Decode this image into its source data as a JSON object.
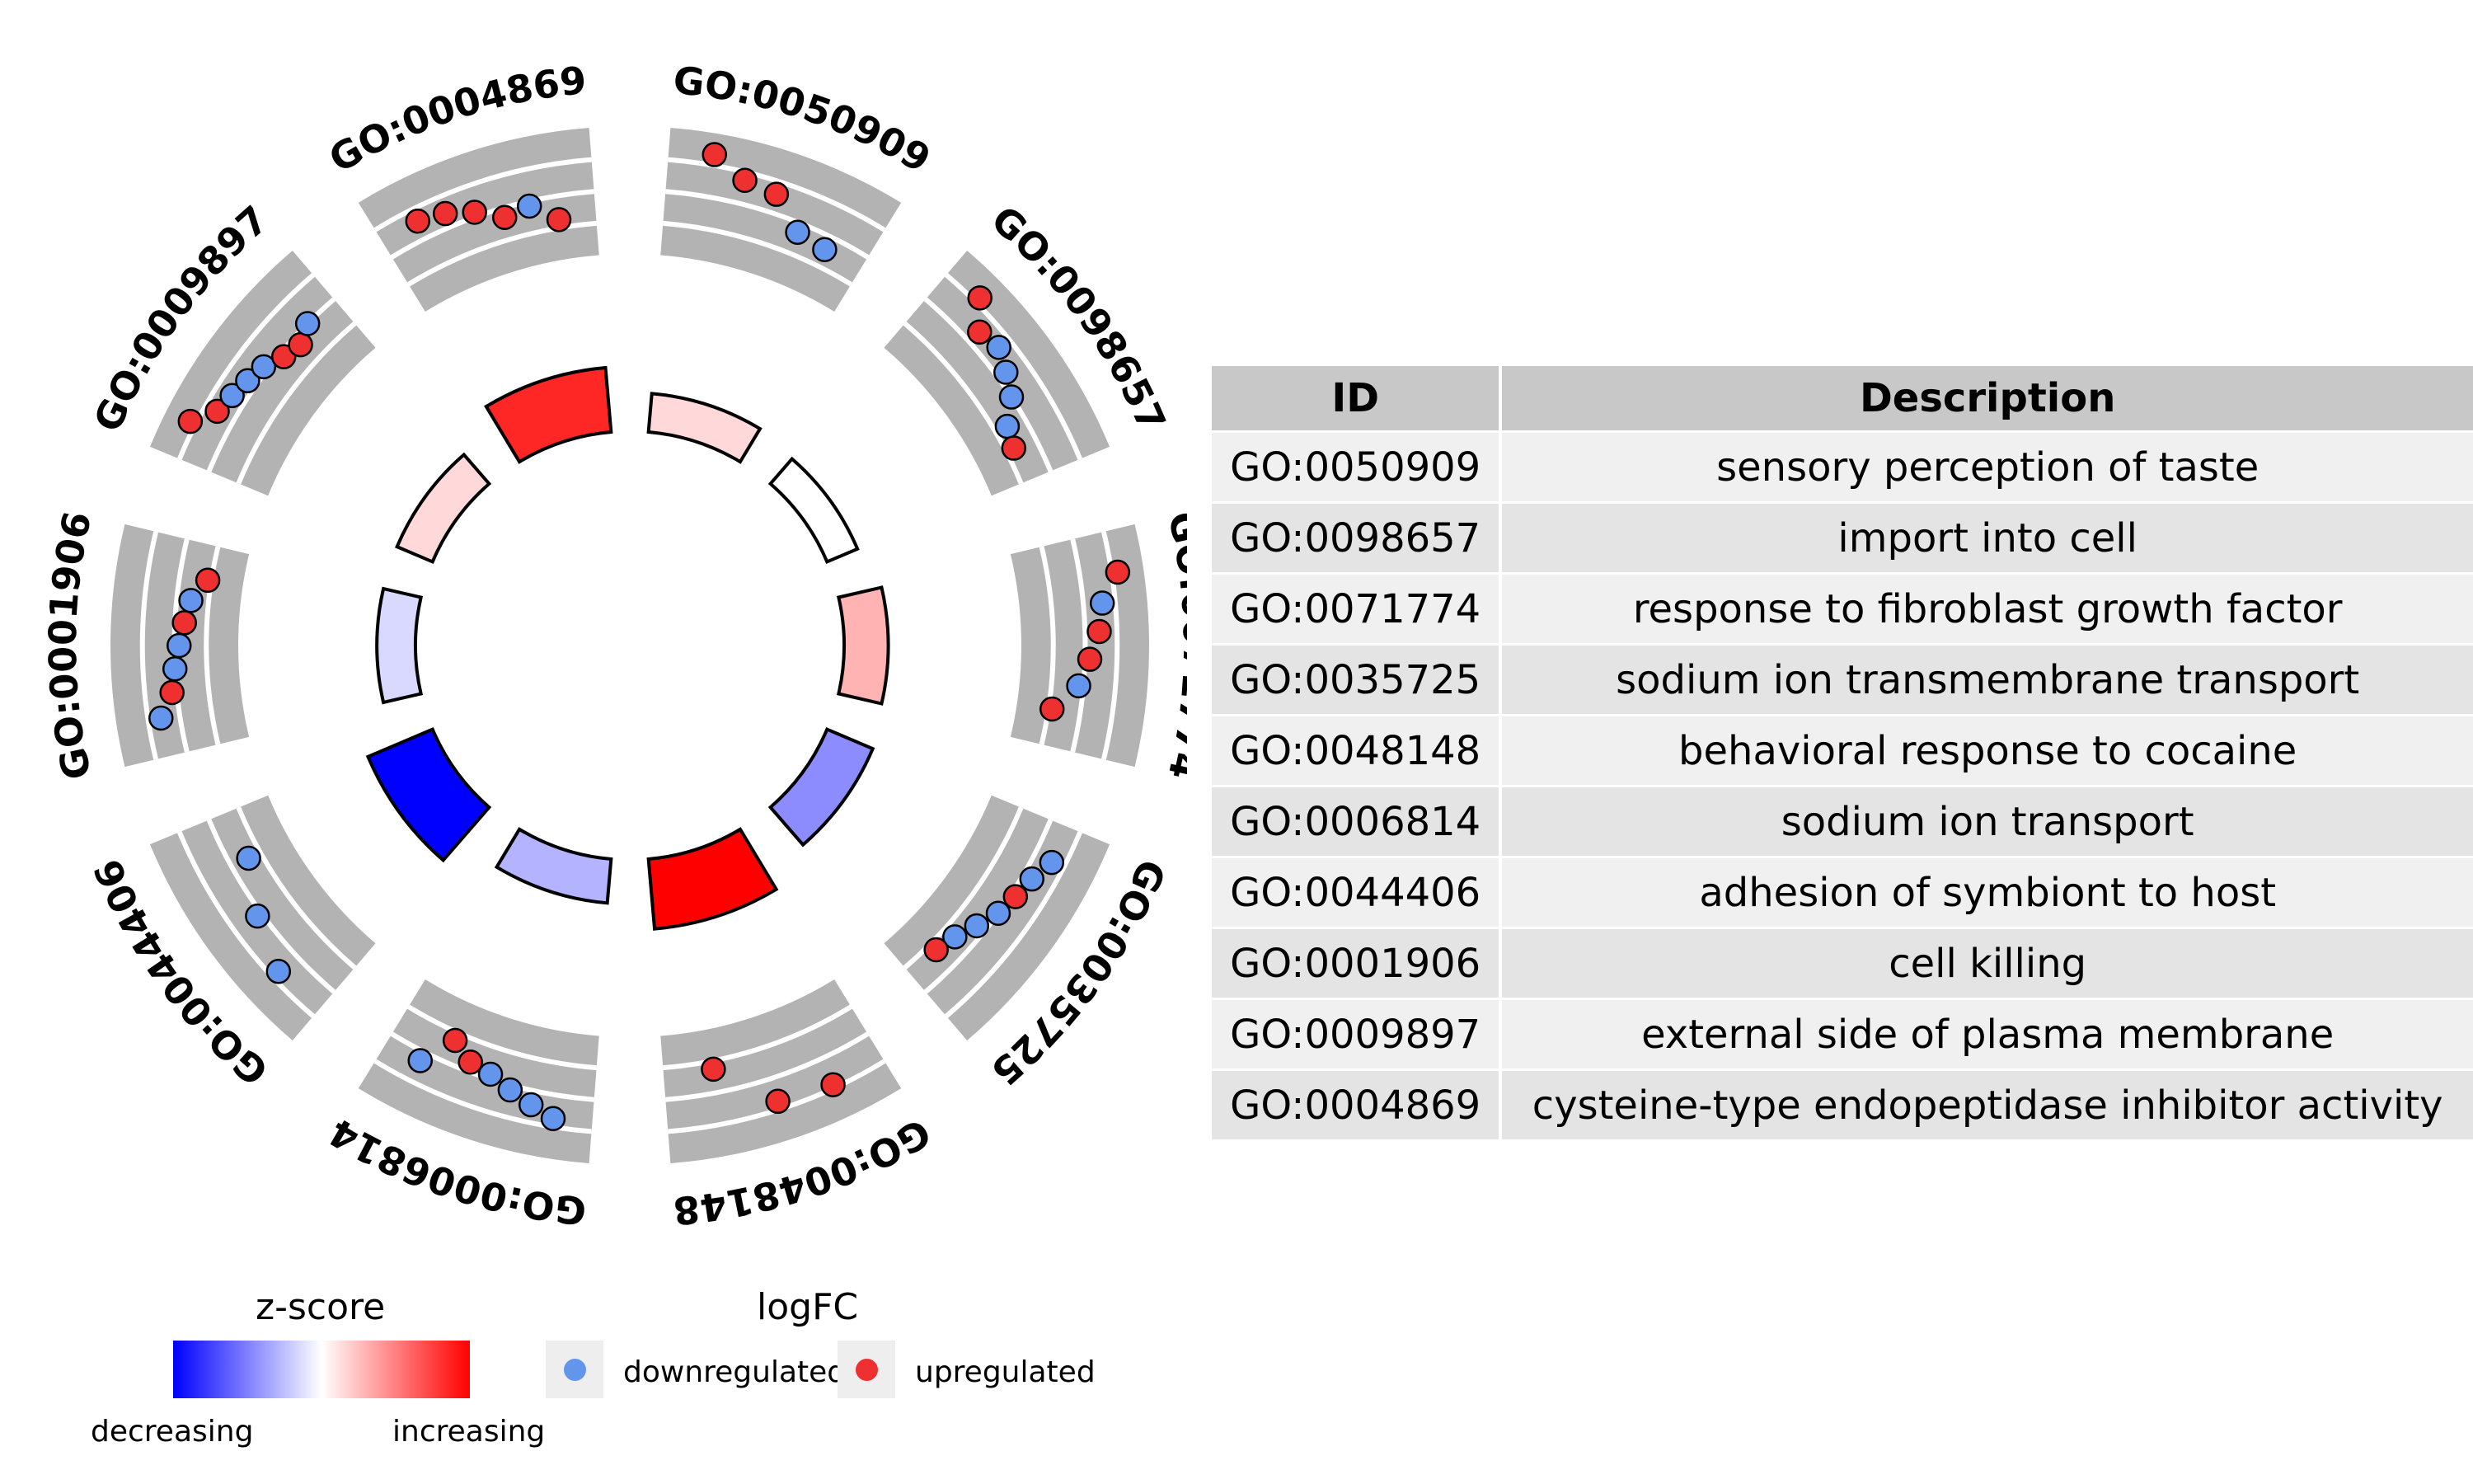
{
  "chart_data": {
    "type": "circle",
    "terms": [
      {
        "id": "GO:0050909",
        "description": "sensory perception of taste",
        "zscore": 0.15,
        "genes_logFC": [
          {
            "up": true,
            "level": 0.05
          },
          {
            "up": true,
            "level": 0.25
          },
          {
            "up": true,
            "level": 0.3
          },
          {
            "up": false,
            "level": 0.6
          },
          {
            "up": false,
            "level": 0.65
          }
        ]
      },
      {
        "id": "GO:0098657",
        "description": "import into cell",
        "zscore": 0.0,
        "genes_logFC": [
          {
            "up": true,
            "level": 0.1
          },
          {
            "up": true,
            "level": 0.35
          },
          {
            "up": false,
            "level": 0.3
          },
          {
            "up": false,
            "level": 0.4
          },
          {
            "up": false,
            "level": 0.5
          },
          {
            "up": false,
            "level": 0.7
          },
          {
            "up": true,
            "level": 0.75
          }
        ]
      },
      {
        "id": "GO:0071774",
        "description": "response to fibroblast growth factor",
        "zscore": 0.3,
        "genes_logFC": [
          {
            "up": true,
            "level": 0.1
          },
          {
            "up": false,
            "level": 0.3
          },
          {
            "up": true,
            "level": 0.35
          },
          {
            "up": true,
            "level": 0.45
          },
          {
            "up": false,
            "level": 0.55
          },
          {
            "up": true,
            "level": 0.8
          }
        ]
      },
      {
        "id": "GO:0035725",
        "description": "sodium ion transmembrane transport",
        "zscore": -0.45,
        "genes_logFC": [
          {
            "up": false,
            "level": 0.3
          },
          {
            "up": false,
            "level": 0.4
          },
          {
            "up": true,
            "level": 0.45
          },
          {
            "up": false,
            "level": 0.5
          },
          {
            "up": false,
            "level": 0.6
          },
          {
            "up": false,
            "level": 0.7
          },
          {
            "up": true,
            "level": 0.75
          }
        ]
      },
      {
        "id": "GO:0048148",
        "description": "behavioral response to cocaine",
        "zscore": 1.0,
        "genes_logFC": [
          {
            "up": true,
            "level": 0.2
          },
          {
            "up": true,
            "level": 0.25
          },
          {
            "up": true,
            "level": 0.75
          }
        ]
      },
      {
        "id": "GO:0006814",
        "description": "sodium ion transport",
        "zscore": -0.3,
        "genes_logFC": [
          {
            "up": false,
            "level": 0.25
          },
          {
            "up": false,
            "level": 0.35
          },
          {
            "up": false,
            "level": 0.45
          },
          {
            "up": false,
            "level": 0.55
          },
          {
            "up": true,
            "level": 0.6
          },
          {
            "up": true,
            "level": 0.75
          },
          {
            "up": false,
            "level": 0.4
          }
        ]
      },
      {
        "id": "GO:0044406",
        "description": "adhesion of symbiont to host",
        "zscore": -1.0,
        "genes_logFC": [
          {
            "up": false,
            "level": 0.25
          },
          {
            "up": false,
            "level": 0.45
          },
          {
            "up": false,
            "level": 0.7
          }
        ]
      },
      {
        "id": "GO:0001906",
        "description": "cell killing",
        "zscore": -0.15,
        "genes_logFC": [
          {
            "up": false,
            "level": 0.3
          },
          {
            "up": true,
            "level": 0.45
          },
          {
            "up": false,
            "level": 0.5
          },
          {
            "up": false,
            "level": 0.55
          },
          {
            "up": true,
            "level": 0.6
          },
          {
            "up": false,
            "level": 0.65
          },
          {
            "up": true,
            "level": 0.8
          }
        ]
      },
      {
        "id": "GO:0009897",
        "description": "external side of plasma membrane",
        "zscore": 0.15,
        "genes_logFC": [
          {
            "up": true,
            "level": 0.1
          },
          {
            "up": true,
            "level": 0.3
          },
          {
            "up": false,
            "level": 0.35
          },
          {
            "up": false,
            "level": 0.4
          },
          {
            "up": false,
            "level": 0.45
          },
          {
            "up": true,
            "level": 0.55
          },
          {
            "up": true,
            "level": 0.6
          },
          {
            "up": false,
            "level": 0.5
          }
        ]
      },
      {
        "id": "GO:0004869",
        "description": "cysteine-type endopeptidase inhibitor activity",
        "zscore": 0.85,
        "genes_logFC": [
          {
            "up": true,
            "level": 0.3
          },
          {
            "up": true,
            "level": 0.35
          },
          {
            "up": true,
            "level": 0.45
          },
          {
            "up": true,
            "level": 0.6
          },
          {
            "up": false,
            "level": 0.55
          },
          {
            "up": true,
            "level": 0.75
          }
        ]
      }
    ],
    "zscore_legend": {
      "title": "z-score",
      "low_label": "decreasing",
      "high_label": "increasing"
    },
    "logfc_legend": {
      "title": "logFC",
      "items": [
        "downregulated",
        "upregulated"
      ]
    },
    "colors": {
      "down": "#6495ed",
      "up": "#ee3030",
      "track": "#b3b3b3",
      "low": "#0000ff",
      "mid": "#ffffff",
      "high": "#ff0000"
    }
  },
  "table": {
    "headers": {
      "id": "ID",
      "description": "Description"
    }
  }
}
